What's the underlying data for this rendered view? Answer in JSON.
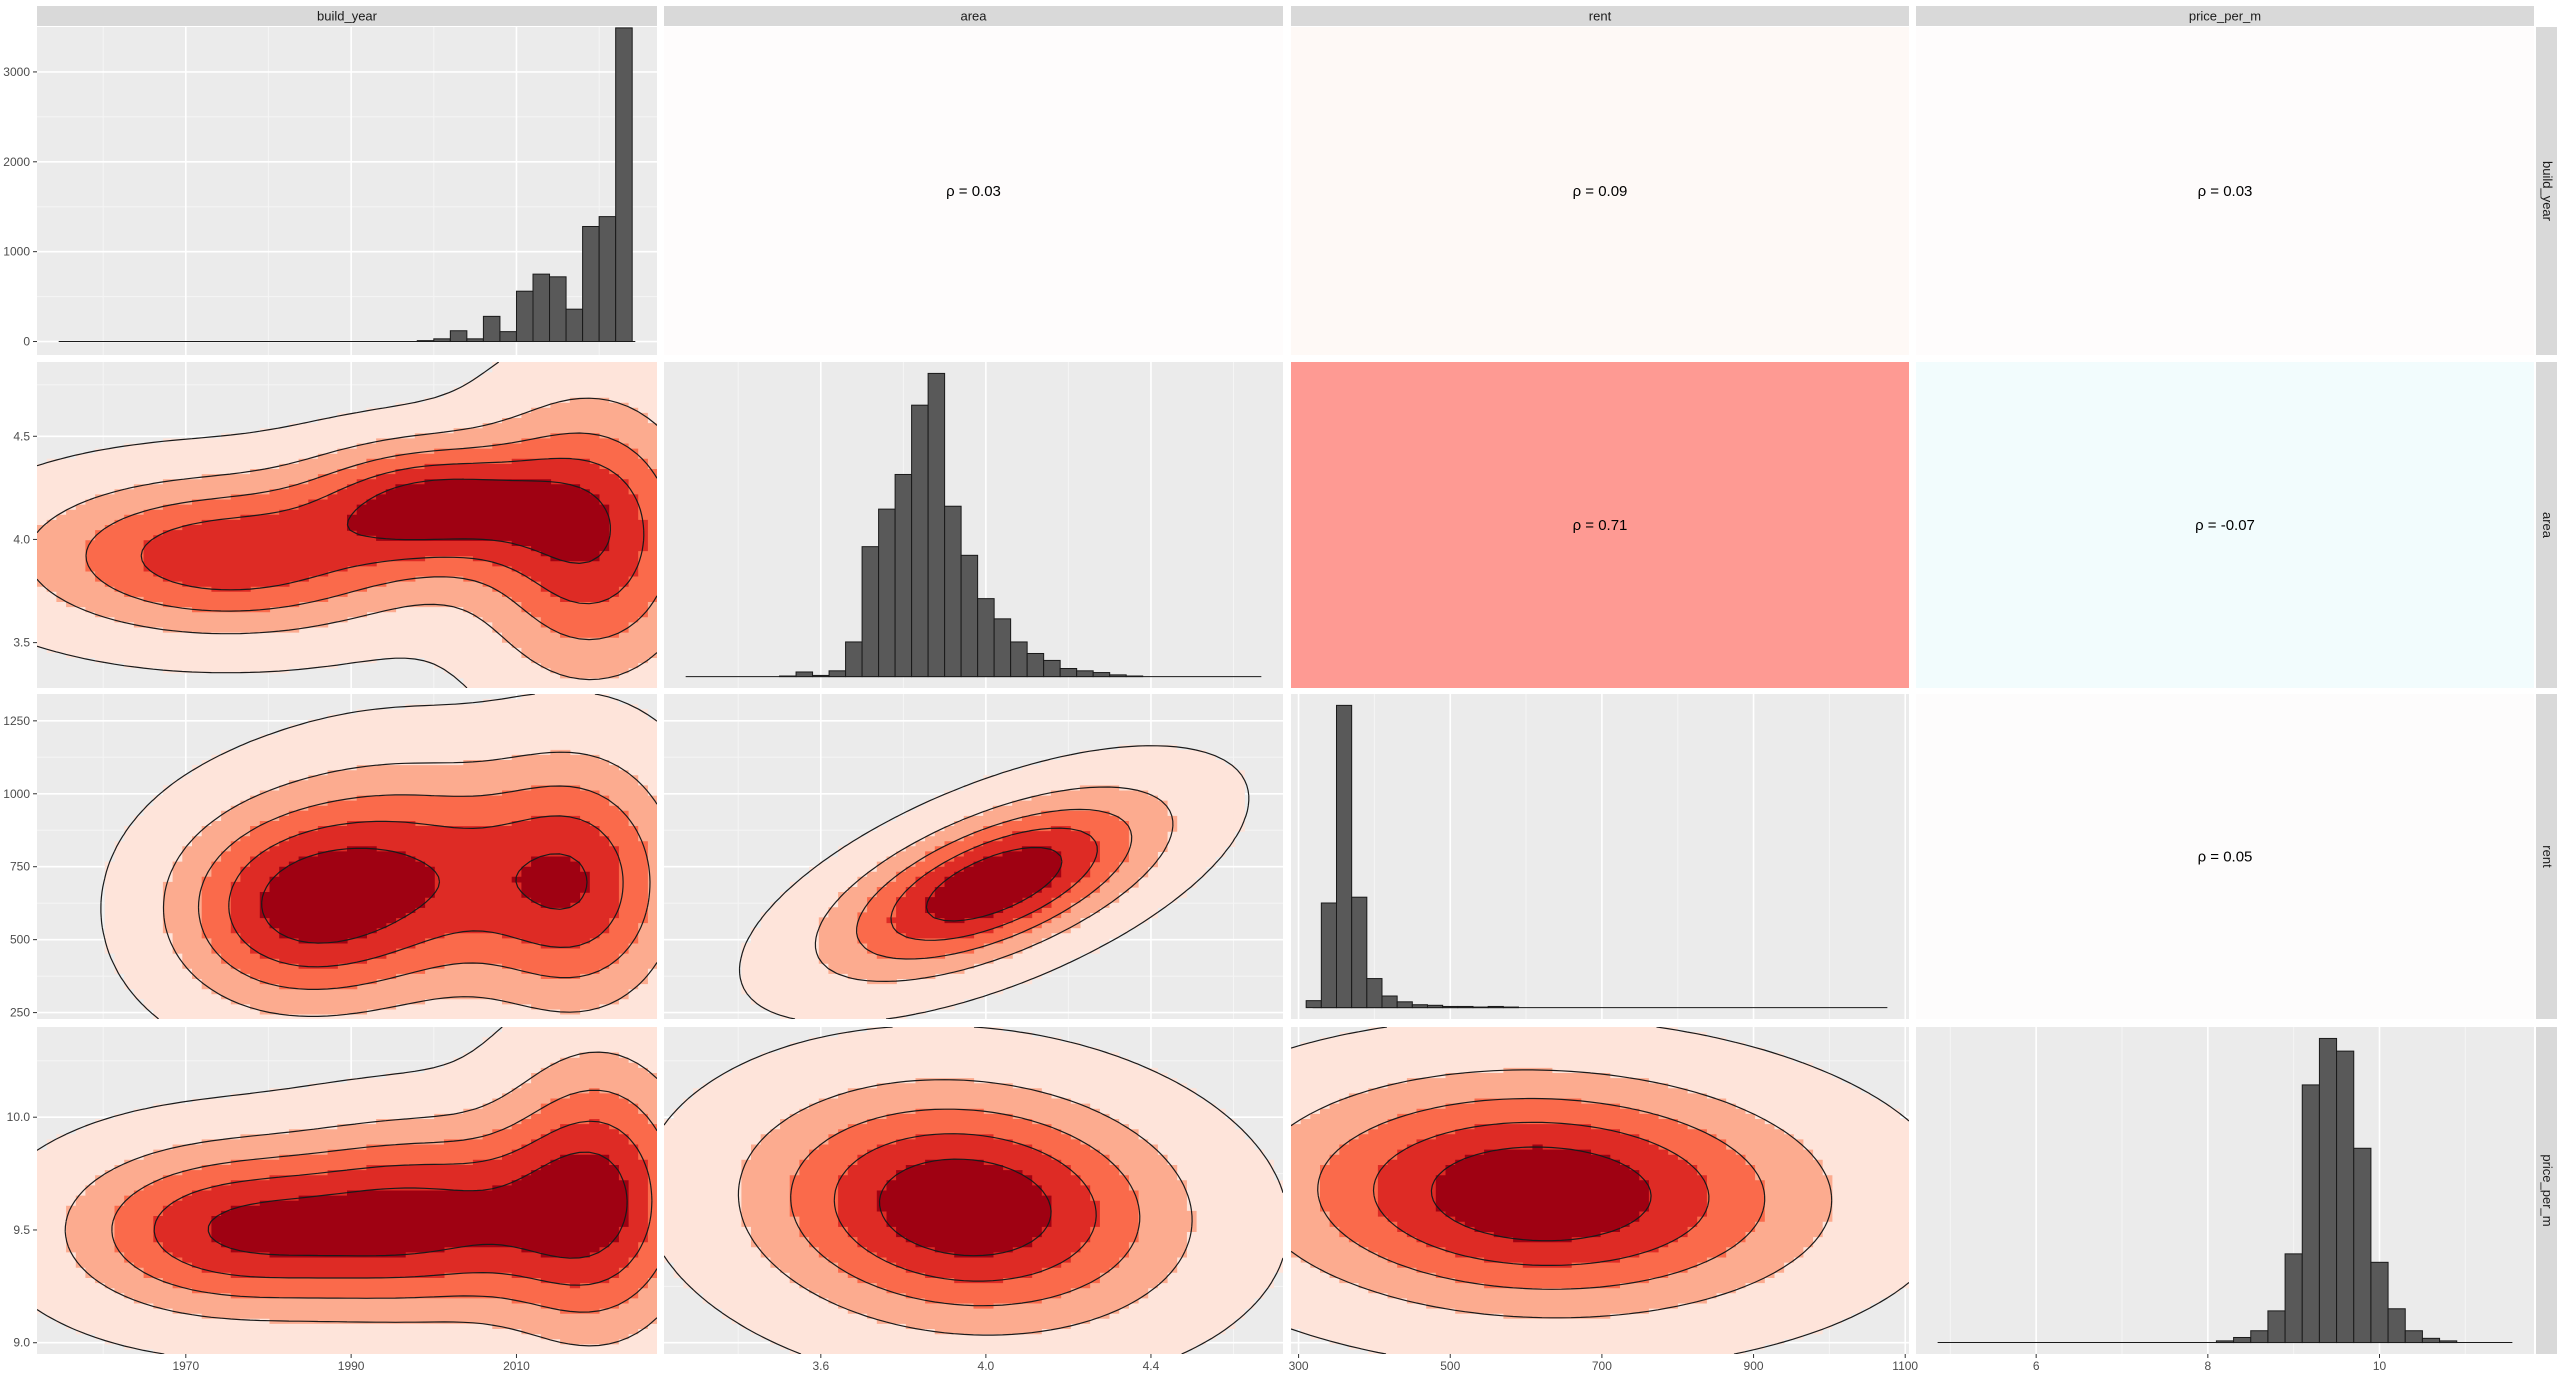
{
  "chart_data": {
    "type": "pair-plot-matrix",
    "variables": [
      "build_year",
      "area",
      "rent",
      "price_per_m"
    ],
    "axes": {
      "build_year": {
        "range": [
          1952,
          2027
        ],
        "ticks": [
          1970,
          1990,
          2010
        ],
        "tick_labels": [
          "1970",
          "1990",
          "2010"
        ]
      },
      "area": {
        "range": [
          3.22,
          4.72
        ],
        "ticks": [
          3.6,
          4.0,
          4.4
        ],
        "tick_labels": [
          "3.6",
          "4.0",
          "4.4"
        ],
        "y_range": [
          3.28,
          4.86
        ],
        "y_ticks": [
          3.5,
          4.0,
          4.5
        ],
        "y_tick_labels": [
          "3.5",
          "4.0",
          "4.5"
        ]
      },
      "rent": {
        "range": [
          290,
          1105
        ],
        "ticks": [
          300,
          500,
          700,
          900,
          1100
        ],
        "tick_labels": [
          "300",
          "500",
          "700",
          "900",
          "1100"
        ],
        "y_range": [
          228,
          1342
        ],
        "y_ticks": [
          250,
          500,
          750,
          1000,
          1250
        ],
        "y_tick_labels": [
          "250",
          "500",
          "750",
          "1000",
          "1250"
        ]
      },
      "price_per_m": {
        "range": [
          4.6,
          11.8
        ],
        "ticks": [
          6,
          8,
          10
        ],
        "tick_labels": [
          "6",
          "8",
          "10"
        ],
        "y_range": [
          8.95,
          10.4
        ],
        "y_ticks": [
          9.0,
          9.5,
          10.0
        ],
        "y_tick_labels": [
          "9.0",
          "9.5",
          "10.0"
        ]
      }
    },
    "histogram_count_axis": {
      "range": [
        -150,
        3500
      ],
      "ticks": [
        0,
        1000,
        2000,
        3000
      ],
      "tick_labels": [
        "0",
        "1000",
        "2000",
        "3000"
      ]
    },
    "histograms": [
      {
        "variable": "build_year",
        "bin_edges": [
          1998,
          2000,
          2002,
          2004,
          2006,
          2008,
          2010,
          2012,
          2014,
          2016,
          2018,
          2020,
          2022,
          2024,
          2026
        ],
        "counts": [
          10,
          30,
          120,
          30,
          280,
          110,
          560,
          750,
          720,
          360,
          1280,
          1390,
          3490,
          0
        ]
      },
      {
        "variable": "area",
        "bin_edges": [
          3.5,
          3.54,
          3.58,
          3.62,
          3.66,
          3.7,
          3.74,
          3.78,
          3.82,
          3.86,
          3.9,
          3.94,
          3.98,
          4.02,
          4.06,
          4.1,
          4.14,
          4.18,
          4.22,
          4.26,
          4.3,
          4.34,
          4.38
        ],
        "counts": [
          1,
          8,
          2,
          10,
          60,
          225,
          290,
          350,
          470,
          525,
          295,
          210,
          135,
          100,
          60,
          40,
          28,
          14,
          10,
          7,
          3,
          1
        ]
      },
      {
        "variable": "rent",
        "bin_edges": [
          310,
          330,
          350,
          370,
          390,
          410,
          430,
          450,
          470,
          490,
          510,
          530,
          550,
          570,
          590
        ],
        "counts": [
          12,
          180,
          520,
          190,
          50,
          20,
          10,
          5,
          4,
          2,
          2,
          1,
          2,
          1
        ]
      },
      {
        "variable": "price_per_m",
        "bin_edges": [
          8.1,
          8.3,
          8.5,
          8.7,
          8.9,
          9.1,
          9.3,
          9.5,
          9.7,
          9.9,
          10.1,
          10.3,
          10.5,
          10.7,
          10.9
        ],
        "counts": [
          4,
          12,
          28,
          75,
          210,
          610,
          720,
          690,
          460,
          190,
          80,
          28,
          10,
          4
        ]
      }
    ],
    "correlations": [
      {
        "x": "area",
        "y": "build_year",
        "label": "ρ = 0.03",
        "value": 0.03,
        "fill": "#fefcfc"
      },
      {
        "x": "rent",
        "y": "build_year",
        "label": "ρ = 0.09",
        "value": 0.09,
        "fill": "#fef9f6"
      },
      {
        "x": "price_per_m",
        "y": "build_year",
        "label": "ρ = 0.03",
        "value": 0.03,
        "fill": "#fefcfc"
      },
      {
        "x": "rent",
        "y": "area",
        "label": "ρ = 0.71",
        "value": 0.71,
        "fill": "#fe9a93"
      },
      {
        "x": "price_per_m",
        "y": "area",
        "label": "ρ = -0.07",
        "value": -0.07,
        "fill": "#f2fcfd"
      },
      {
        "x": "price_per_m",
        "y": "rent",
        "label": "ρ = 0.05",
        "value": 0.05,
        "fill": "#fdfcfc"
      }
    ],
    "density_levels": [
      "#fee4da",
      "#fcab8f",
      "#fa6a4b",
      "#de2b25",
      "#9f0112"
    ],
    "densities": [
      {
        "x": "build_year",
        "y": "area",
        "components": [
          {
            "cx": 2019,
            "cy": 4.0,
            "sx": 9,
            "sy": 0.45
          },
          {
            "cx": 1975,
            "cy": 3.92,
            "sx": 16,
            "sy": 0.25
          },
          {
            "cx": 2000,
            "cy": 4.18,
            "sx": 10,
            "sy": 0.2
          }
        ]
      },
      {
        "x": "build_year",
        "y": "rent",
        "components": [
          {
            "cx": 2018,
            "cy": 690,
            "sx": 8,
            "sy": 290
          },
          {
            "cx": 1982,
            "cy": 600,
            "sx": 10,
            "sy": 230
          },
          {
            "cx": 1998,
            "cy": 720,
            "sx": 12,
            "sy": 260
          }
        ]
      },
      {
        "x": "build_year",
        "y": "price_per_m",
        "components": [
          {
            "cx": 2020,
            "cy": 9.65,
            "sx": 8,
            "sy": 0.42
          },
          {
            "cx": 1975,
            "cy": 9.5,
            "sx": 13,
            "sy": 0.25
          },
          {
            "cx": 2000,
            "cy": 9.55,
            "sx": 12,
            "sy": 0.28
          }
        ]
      },
      {
        "x": "area",
        "y": "rent",
        "components": [
          {
            "cx": 4.02,
            "cy": 690,
            "sx": 0.26,
            "sy": 200,
            "rho": 0.62
          }
        ]
      },
      {
        "x": "area",
        "y": "price_per_m",
        "components": [
          {
            "cx": 3.95,
            "cy": 9.6,
            "sx": 0.33,
            "sy": 0.34,
            "rho": -0.1
          }
        ]
      },
      {
        "x": "rent",
        "y": "price_per_m",
        "components": [
          {
            "cx": 620,
            "cy": 9.66,
            "sx": 230,
            "sy": 0.33,
            "rho": -0.05
          }
        ]
      }
    ]
  }
}
